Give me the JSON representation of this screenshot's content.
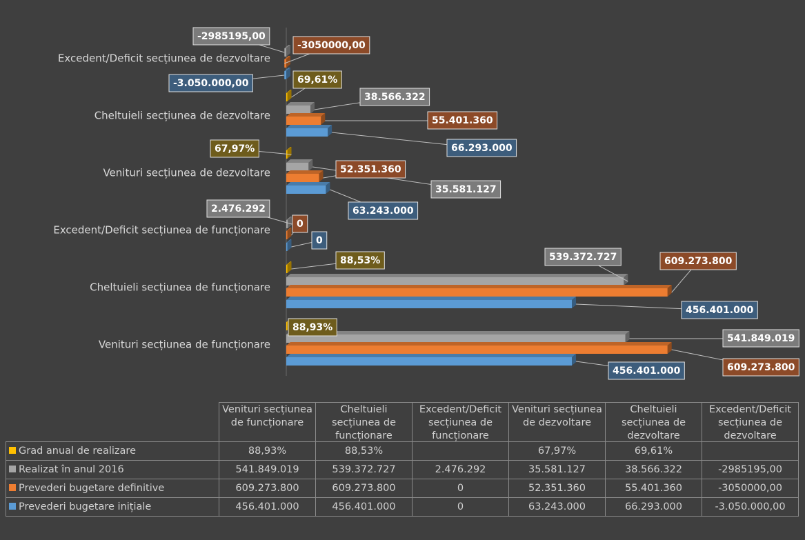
{
  "chart_data": {
    "type": "bar",
    "horizontal": true,
    "categories": [
      "Venituri secțiunea de funcționare",
      "Cheltuieli secțiunea de funcționare",
      "Excedent/Deficit secțiunea de funcționare",
      "Venituri secțiunea de dezvoltare",
      "Cheltuieli secțiunea de dezvoltare",
      "Excedent/Deficit secțiunea de dezvoltare"
    ],
    "xlim": [
      0,
      700000000
    ],
    "series": [
      {
        "name": "Grad anual de realizare",
        "color": "#ffc000",
        "values": [
          88.93,
          88.53,
          null,
          67.97,
          69.61,
          null
        ],
        "value_labels": [
          "88,93%",
          "88,53%",
          null,
          "67,97%",
          "69,61%",
          null
        ]
      },
      {
        "name": "Realizat în anul 2016",
        "color": "#a5a5a5",
        "values": [
          541849019,
          539372727,
          2476292,
          35581127,
          38566322,
          -2985195
        ],
        "value_labels": [
          "541.849.019",
          "539.372.727",
          "2.476.292",
          "35.581.127",
          "38.566.322",
          "-2985195,00"
        ]
      },
      {
        "name": "Prevederi bugetare definitive",
        "color": "#ed7d31",
        "values": [
          609273800,
          609273800,
          0,
          52351360,
          55401360,
          -3050000
        ],
        "value_labels": [
          "609.273.800",
          "609.273.800",
          "0",
          "52.351.360",
          "55.401.360",
          "-3050000,00"
        ]
      },
      {
        "name": "Prevederi bugetare inițiale",
        "color": "#5b9bd5",
        "values": [
          456401000,
          456401000,
          0,
          63243000,
          66293000,
          -3050000
        ],
        "value_labels": [
          "456.401.000",
          "456.401.000",
          "0",
          "63.243.000",
          "66.293.000",
          "-3.050.000,00"
        ]
      }
    ]
  }
}
